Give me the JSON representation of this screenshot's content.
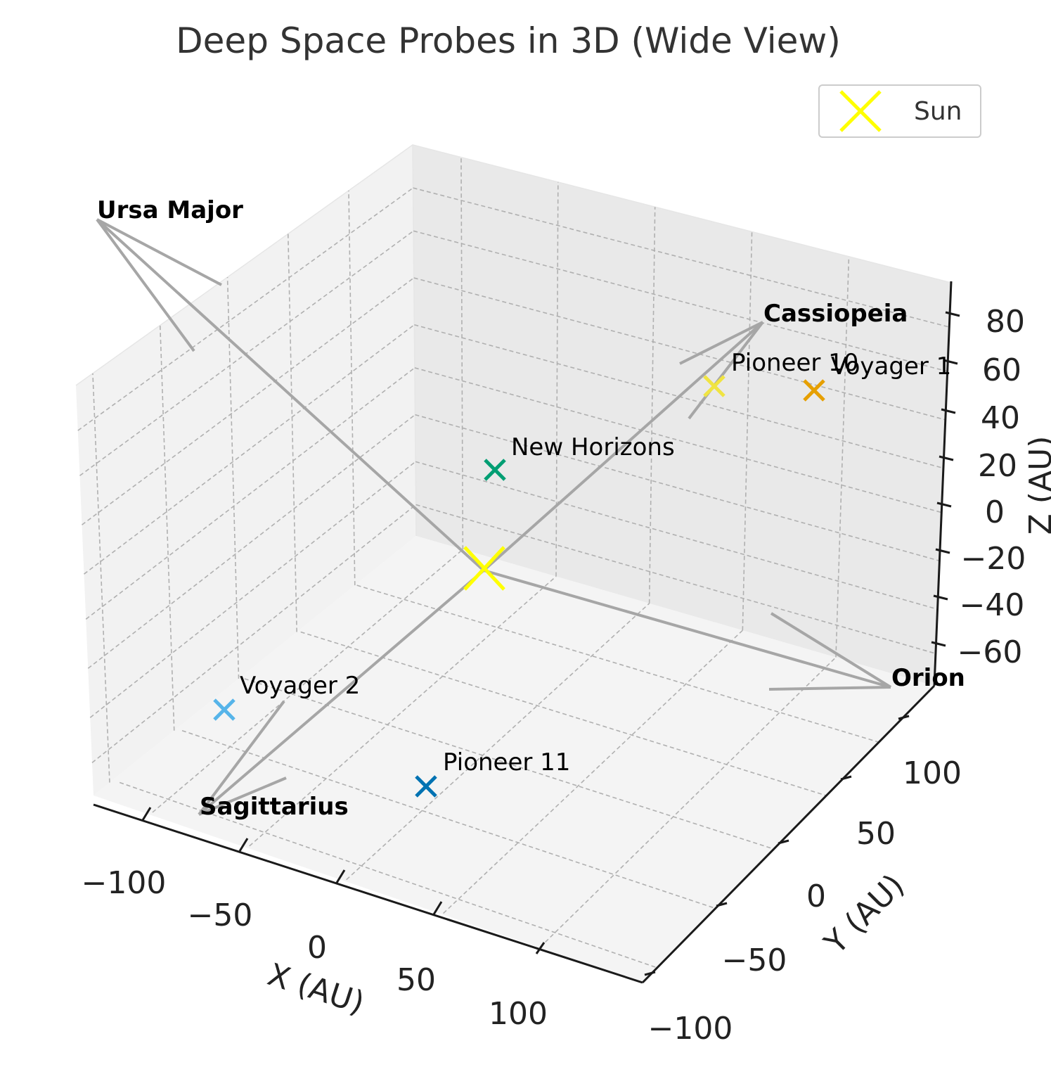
{
  "chart_data": {
    "type": "scatter3d",
    "title": "Deep Space Probes in 3D (Wide View)",
    "xlabel": "X (AU)",
    "ylabel": "Y (AU)",
    "zlabel": "Z (AU)",
    "x_ticks": [
      "−100",
      "−50",
      "0",
      "50",
      "100"
    ],
    "y_ticks": [
      "−100",
      "−50",
      "0",
      "50",
      "100"
    ],
    "z_ticks": [
      "−60",
      "−40",
      "−20",
      "0",
      "20",
      "40",
      "60",
      "80"
    ],
    "legend": {
      "position": "top-right",
      "entries": [
        {
          "label": "Sun",
          "color": "#ffff00",
          "marker": "x"
        }
      ]
    },
    "sun": {
      "name": "Sun",
      "color": "#ffff00"
    },
    "probes": [
      {
        "name": "Voyager 1",
        "color": "#e69f00"
      },
      {
        "name": "Pioneer 10",
        "color": "#f0e442"
      },
      {
        "name": "New Horizons",
        "color": "#009e73"
      },
      {
        "name": "Voyager 2",
        "color": "#56b4e9"
      },
      {
        "name": "Pioneer 11",
        "color": "#0072b2"
      }
    ],
    "constellations": [
      "Ursa Major",
      "Cassiopeia",
      "Orion",
      "Sagittarius"
    ],
    "arrow_color": "#a6a6a6"
  }
}
